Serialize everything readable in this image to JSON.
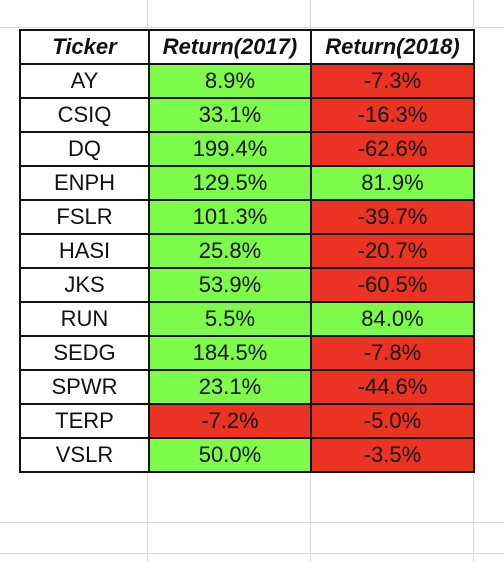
{
  "table": {
    "headers": [
      "Ticker",
      "Return(2017)",
      "Return(2018)"
    ],
    "rows": [
      {
        "ticker": "AY",
        "r2017": "8.9%",
        "r2018": "-7.3%"
      },
      {
        "ticker": "CSIQ",
        "r2017": "33.1%",
        "r2018": "-16.3%"
      },
      {
        "ticker": "DQ",
        "r2017": "199.4%",
        "r2018": "-62.6%"
      },
      {
        "ticker": "ENPH",
        "r2017": "129.5%",
        "r2018": "81.9%"
      },
      {
        "ticker": "FSLR",
        "r2017": "101.3%",
        "r2018": "-39.7%"
      },
      {
        "ticker": "HASI",
        "r2017": "25.8%",
        "r2018": "-20.7%"
      },
      {
        "ticker": "JKS",
        "r2017": "53.9%",
        "r2018": "-60.5%"
      },
      {
        "ticker": "RUN",
        "r2017": "5.5%",
        "r2018": "84.0%"
      },
      {
        "ticker": "SEDG",
        "r2017": "184.5%",
        "r2018": "-7.8%"
      },
      {
        "ticker": "SPWR",
        "r2017": "23.1%",
        "r2018": "-44.6%"
      },
      {
        "ticker": "TERP",
        "r2017": "-7.2%",
        "r2018": "-5.0%"
      },
      {
        "ticker": "VSLR",
        "r2017": "50.0%",
        "r2018": "-3.5%"
      }
    ]
  },
  "colors": {
    "positive": "#7dfa4a",
    "negative": "#ea3323"
  }
}
